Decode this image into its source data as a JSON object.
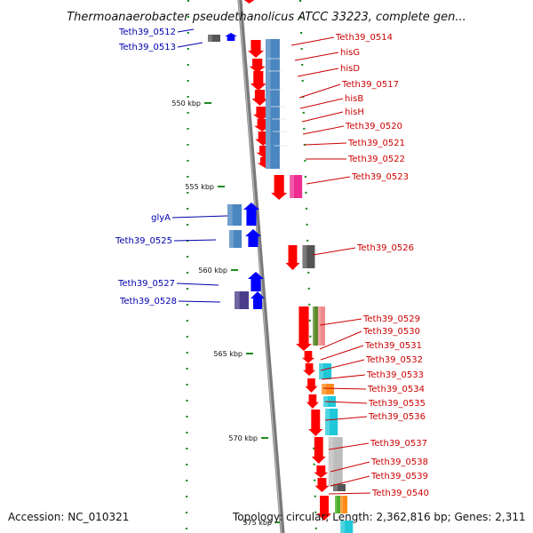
{
  "title": "Thermoanaerobacter pseudethanolicus ATCC 33223, complete gen...",
  "footer": {
    "accession": "Accession: NC_010321",
    "topology": "Topology: circular; Length: 2,362,816 bp; Genes: 2,311"
  },
  "colors": {
    "forward_label": "#cc0000",
    "reverse_label": "#0000aa",
    "forward_gene": "#ff0000",
    "reverse_gene": "#0000ff",
    "axis": "#7a7a7a",
    "tick": "#1e8a1e"
  },
  "kbp_ticks": [
    "550 kbp",
    "555 kbp",
    "560 kbp",
    "565 kbp",
    "570 kbp",
    "575 kbp"
  ],
  "reverse_labels": [
    "Teth39_0512",
    "Teth39_0513",
    "glyA",
    "Teth39_0525",
    "Teth39_0527",
    "Teth39_0528"
  ],
  "forward_labels": [
    "Teth39_0514",
    "hisG",
    "hisD",
    "Teth39_0517",
    "hisB",
    "hisH",
    "Teth39_0520",
    "Teth39_0521",
    "Teth39_0522",
    "Teth39_0523",
    "Teth39_0526",
    "Teth39_0529",
    "Teth39_0530",
    "Teth39_0531",
    "Teth39_0532",
    "Teth39_0533",
    "Teth39_0534",
    "Teth39_0535",
    "Teth39_0536",
    "Teth39_0537",
    "Teth39_0538",
    "Teth39_0539",
    "Teth39_0540"
  ]
}
